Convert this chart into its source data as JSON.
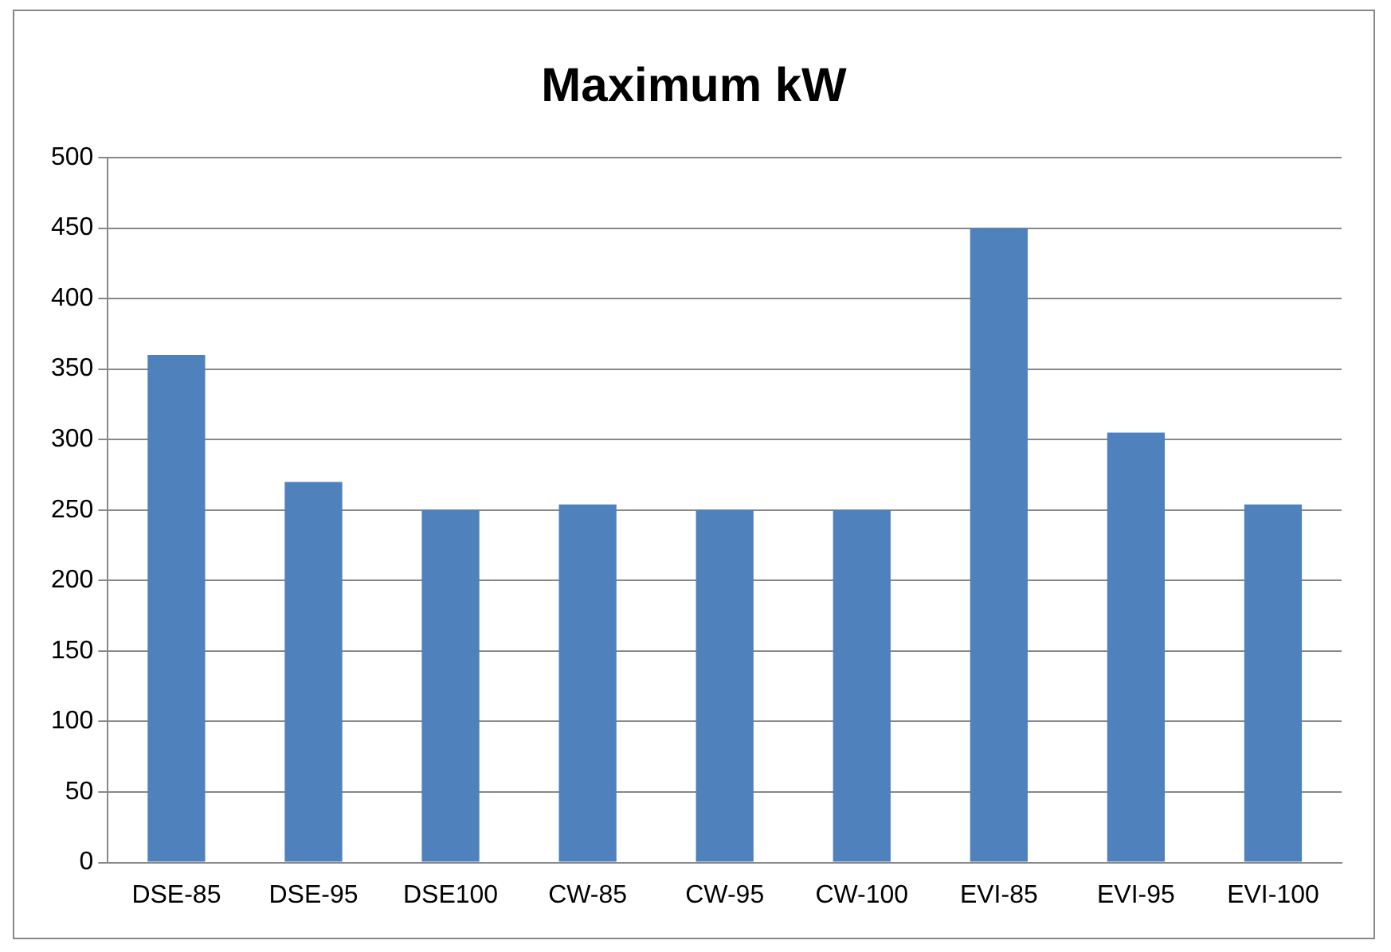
{
  "chart_data": {
    "type": "bar",
    "title": "Maximum kW",
    "categories": [
      "DSE-85",
      "DSE-95",
      "DSE100",
      "CW-85",
      "CW-95",
      "CW-100",
      "EVI-85",
      "EVI-95",
      "EVI-100"
    ],
    "values": [
      360,
      270,
      250,
      254,
      250,
      250,
      450,
      305,
      254
    ],
    "color": "#4f81bd",
    "ylim": [
      0,
      500
    ],
    "yticks": [
      0,
      50,
      100,
      150,
      200,
      250,
      300,
      350,
      400,
      450,
      500
    ],
    "grid": "y",
    "legend": false
  }
}
